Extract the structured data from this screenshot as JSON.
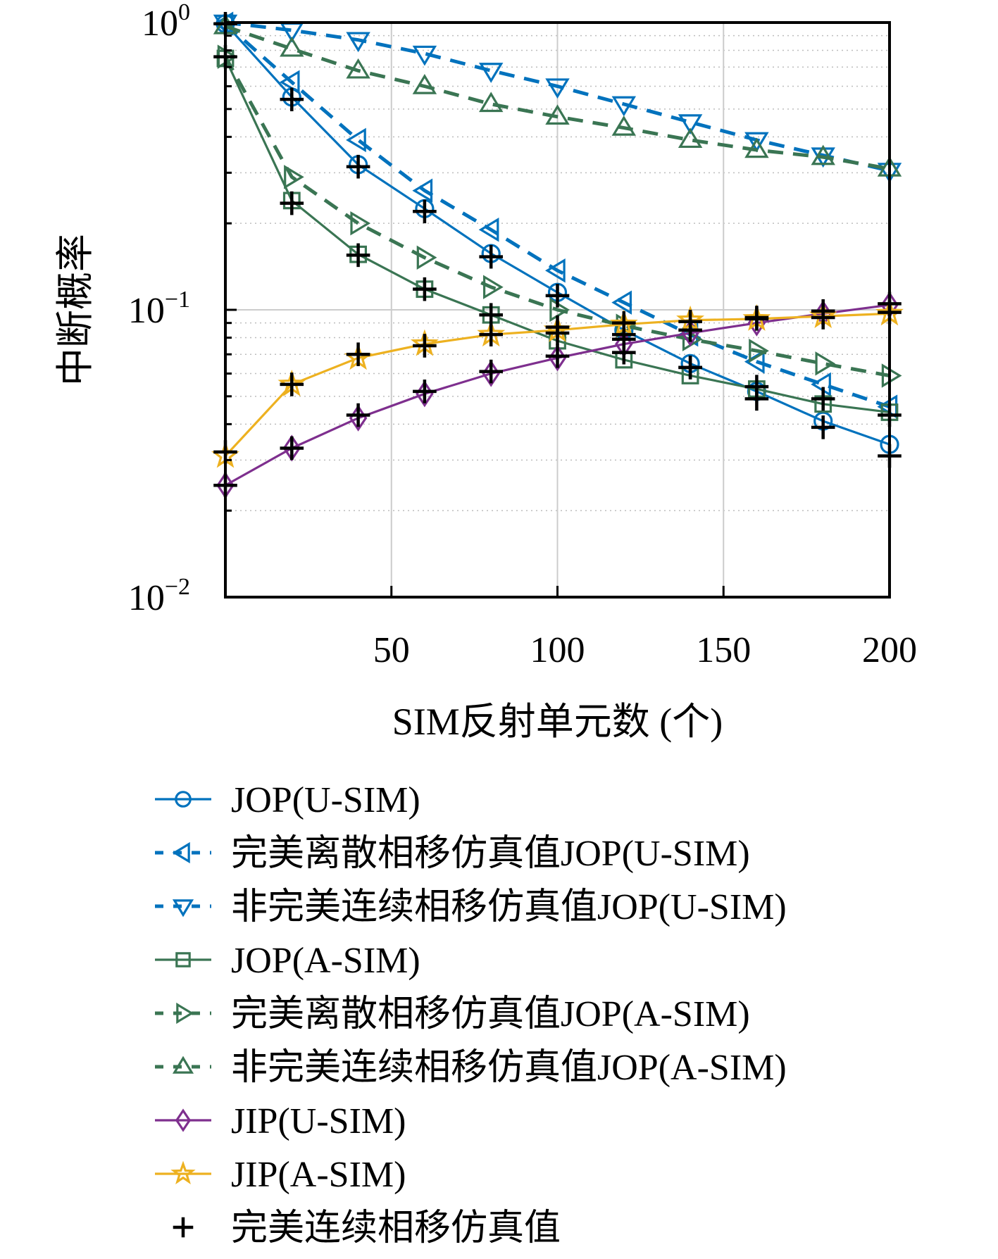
{
  "chart_data": {
    "type": "line",
    "title": "",
    "xlabel": "SIM反射单元数 (个)",
    "ylabel": "中断概率",
    "xscale": "linear",
    "yscale": "log",
    "xlim": [
      0,
      200
    ],
    "ylim": [
      0.01,
      1
    ],
    "xticks": [
      50,
      100,
      150,
      200
    ],
    "xtick_labels": [
      "50",
      "100",
      "150",
      "200"
    ],
    "yticks": [
      0.01,
      0.1,
      1
    ],
    "ytick_labels": [
      {
        "base": "10",
        "exp": "−2"
      },
      {
        "base": "10",
        "exp": "−1"
      },
      {
        "base": "10",
        "exp": "0"
      }
    ],
    "grid": true,
    "minor_grid": true,
    "legend_placement": "below",
    "x": [
      0,
      20,
      40,
      60,
      80,
      100,
      120,
      140,
      160,
      180,
      200
    ],
    "series": [
      {
        "name": "JOP(U-SIM)",
        "color": "#0072BD",
        "dash": "solid",
        "marker": "circle",
        "values": [
          0.99,
          0.55,
          0.32,
          0.225,
          0.157,
          0.115,
          0.085,
          0.065,
          0.052,
          0.041,
          0.034
        ]
      },
      {
        "name": "完美离散相移仿真值JOP(U-SIM)",
        "color": "#0072BD",
        "dash": "dashed",
        "marker": "triangle-left",
        "values": [
          0.99,
          0.62,
          0.39,
          0.26,
          0.19,
          0.137,
          0.106,
          0.082,
          0.066,
          0.055,
          0.046
        ]
      },
      {
        "name": "非完美连续相移仿真值JOP(U-SIM)",
        "color": "#0072BD",
        "dash": "dashed",
        "marker": "triangle-down",
        "values": [
          1.0,
          0.94,
          0.87,
          0.78,
          0.68,
          0.6,
          0.52,
          0.45,
          0.39,
          0.345,
          0.305
        ]
      },
      {
        "name": "JOP(A-SIM)",
        "color": "#3A7553",
        "dash": "solid",
        "marker": "square",
        "values": [
          0.75,
          0.24,
          0.156,
          0.118,
          0.096,
          0.078,
          0.067,
          0.059,
          0.053,
          0.047,
          0.044
        ]
      },
      {
        "name": "完美离散相移仿真值JOP(A-SIM)",
        "color": "#3A7553",
        "dash": "dashed",
        "marker": "triangle-right",
        "values": [
          0.76,
          0.29,
          0.2,
          0.152,
          0.12,
          0.1,
          0.088,
          0.079,
          0.072,
          0.065,
          0.059
        ]
      },
      {
        "name": "非完美连续相移仿真值JOP(A-SIM)",
        "color": "#3A7553",
        "dash": "dashed",
        "marker": "triangle-up",
        "values": [
          0.97,
          0.81,
          0.68,
          0.6,
          0.52,
          0.47,
          0.43,
          0.39,
          0.36,
          0.34,
          0.31
        ]
      },
      {
        "name": "JIP(U-SIM)",
        "color": "#7E2F8E",
        "dash": "solid",
        "marker": "diamond",
        "values": [
          0.0245,
          0.033,
          0.042,
          0.051,
          0.06,
          0.068,
          0.076,
          0.083,
          0.09,
          0.097,
          0.104
        ]
      },
      {
        "name": "JIP(A-SIM)",
        "color": "#EDB120",
        "dash": "solid",
        "marker": "star",
        "values": [
          0.031,
          0.055,
          0.068,
          0.076,
          0.082,
          0.085,
          0.089,
          0.092,
          0.093,
          0.095,
          0.097
        ]
      },
      {
        "name": "完美连续相移仿真值",
        "color": "#000000",
        "dash": "none",
        "marker": "plus",
        "groups": [
          {
            "of": "JOP(U-SIM)",
            "values": [
              0.99,
              0.54,
              0.315,
              0.22,
              0.153,
              0.112,
              0.082,
              0.063,
              0.049,
              0.039,
              0.031
            ]
          },
          {
            "of": "JOP(A-SIM)",
            "values": [
              0.76,
              0.235,
              0.155,
              0.118,
              0.096,
              0.083,
              0.071,
              0.063,
              0.054,
              0.049,
              0.043
            ]
          },
          {
            "of": "JIP(U-SIM)",
            "values": [
              0.0245,
              0.033,
              0.043,
              0.052,
              0.061,
              0.069,
              0.079,
              0.085,
              0.093,
              0.099,
              0.105
            ]
          },
          {
            "of": "JIP(A-SIM)",
            "values": [
              0.032,
              0.055,
              0.07,
              0.075,
              0.082,
              0.087,
              0.09,
              0.091,
              0.094,
              0.094,
              0.098
            ]
          }
        ]
      }
    ]
  }
}
